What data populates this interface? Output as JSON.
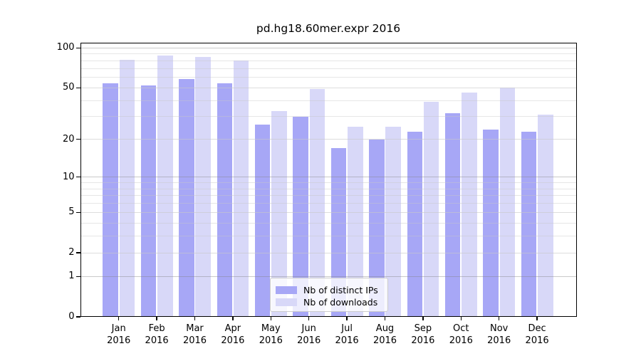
{
  "chart_data": {
    "type": "bar",
    "title": "pd.hg18.60mer.expr 2016",
    "categories": [
      "Jan",
      "Feb",
      "Mar",
      "Apr",
      "May",
      "Jun",
      "Jul",
      "Aug",
      "Sep",
      "Oct",
      "Nov",
      "Dec"
    ],
    "year_label": "2016",
    "series": [
      {
        "name": "Nb of distinct IPs",
        "color": "#a7a7f6",
        "values": [
          54,
          52,
          58,
          54,
          26,
          30,
          17,
          20,
          23,
          32,
          24,
          23
        ]
      },
      {
        "name": "Nb of downloads",
        "color": "#d8d8f8",
        "values": [
          81,
          88,
          85,
          80,
          33,
          49,
          25,
          25,
          39,
          46,
          50,
          31
        ]
      }
    ],
    "xlabel": "",
    "ylabel": "",
    "y_scale": "log1p",
    "y_ticks": [
      0,
      1,
      2,
      5,
      10,
      20,
      50,
      100
    ],
    "y_decade_gridlines": [
      1,
      10,
      100
    ],
    "y_minor_gridlines": [
      3,
      4,
      6,
      7,
      8,
      9,
      30,
      40,
      60,
      70,
      80,
      90
    ],
    "ylim": [
      0,
      110
    ],
    "grid": true,
    "legend_position": "lower center inside",
    "colors": {
      "grid_decade": "#c9c9c9",
      "grid_minor": "#e5e5e5",
      "frame": "#000000",
      "background": "#ffffff"
    }
  }
}
